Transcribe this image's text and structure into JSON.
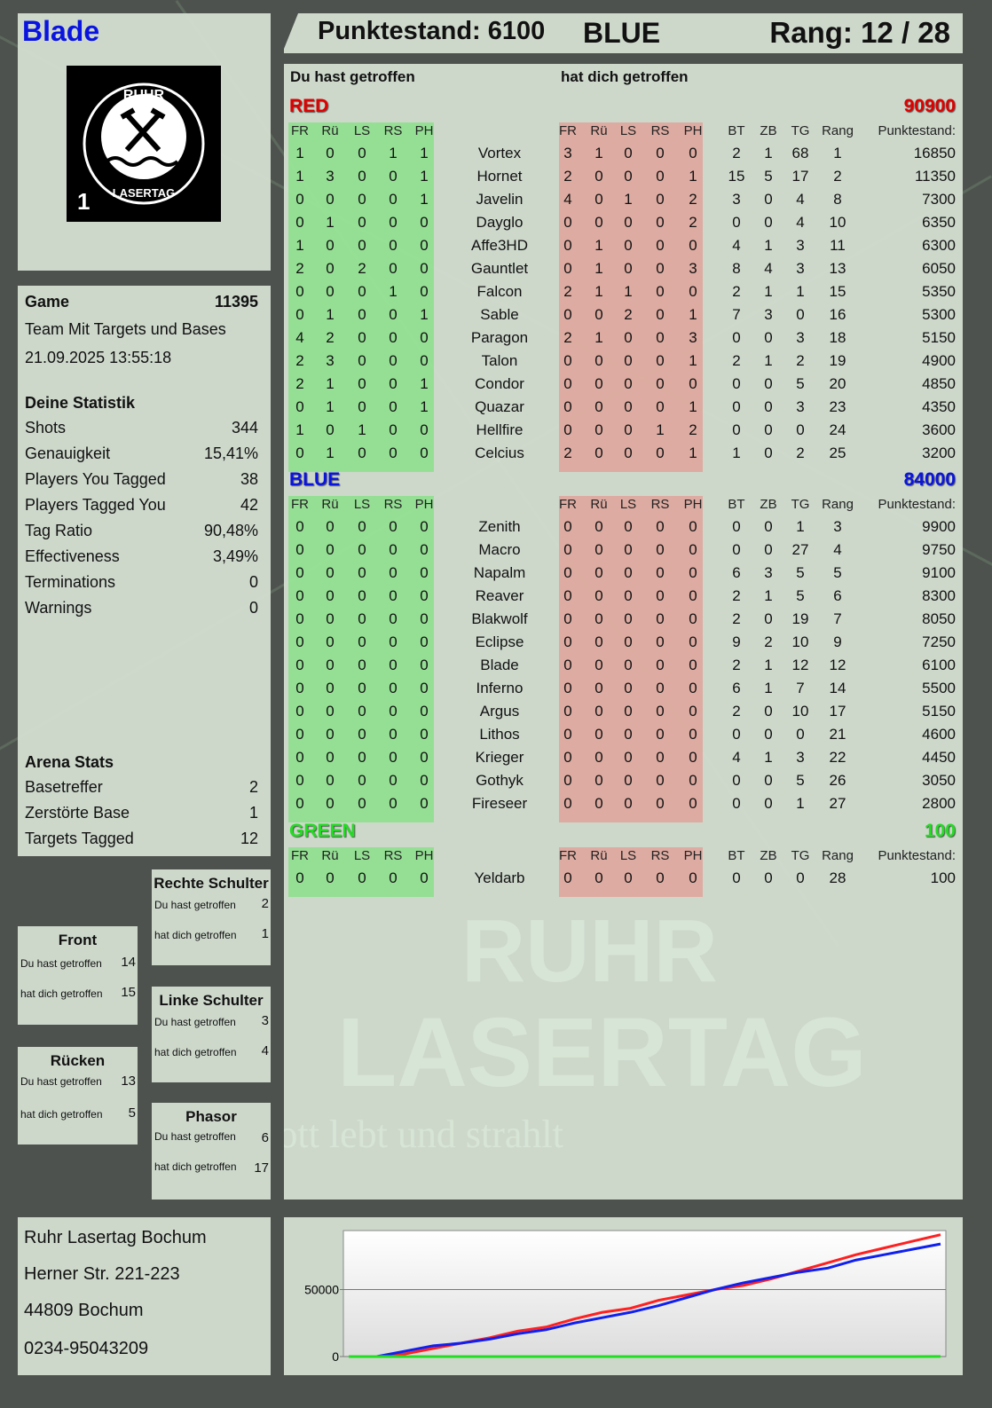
{
  "player": {
    "name": "Blade",
    "logo_text": "RUHR LASERTAG 1"
  },
  "header": {
    "score_label": "Punktestand: 6100",
    "team": "BLUE",
    "rank_label": "Rang: 12 / 28"
  },
  "game": {
    "label": "Game",
    "number": "11395",
    "mode": "Team Mit Targets und Bases",
    "datetime": "21.09.2025 13:55:18"
  },
  "stats": {
    "title": "Deine Statistik",
    "items": [
      {
        "label": "Shots",
        "value": "344"
      },
      {
        "label": "Genauigkeit",
        "value": "15,41%"
      },
      {
        "label": "Players You Tagged",
        "value": "38"
      },
      {
        "label": "Players Tagged You",
        "value": "42"
      },
      {
        "label": "Tag Ratio",
        "value": "90,48%"
      },
      {
        "label": "Effectiveness",
        "value": "3,49%"
      },
      {
        "label": "Terminations",
        "value": "0"
      },
      {
        "label": "Warnings",
        "value": "0"
      }
    ]
  },
  "arena": {
    "title": "Arena Stats",
    "items": [
      {
        "label": "Basetreffer",
        "value": "2"
      },
      {
        "label": "Zerstörte Base",
        "value": "1"
      },
      {
        "label": "Targets Tagged",
        "value": "12"
      }
    ]
  },
  "hitzones": {
    "you_hit": "Du hast getroffen",
    "hit_you": "hat dich getroffen",
    "zones": {
      "right_shoulder": {
        "title": "Rechte Schulter",
        "you_hit": "2",
        "hit_you": "1"
      },
      "front": {
        "title": "Front",
        "you_hit": "14",
        "hit_you": "15"
      },
      "left_shoulder": {
        "title": "Linke Schulter",
        "you_hit": "3",
        "hit_you": "4"
      },
      "back": {
        "title": "Rücken",
        "you_hit": "13",
        "hit_you": "5"
      },
      "phasor": {
        "title": "Phasor",
        "you_hit": "6",
        "hit_you": "17"
      }
    }
  },
  "address": {
    "lines": [
      "Ruhr Lasertag Bochum",
      "Herner Str. 221-223",
      "44809 Bochum",
      "0234-95043209"
    ]
  },
  "table": {
    "you_hit_title": "Du hast getroffen",
    "hit_you_title": "hat dich getroffen",
    "columns": [
      "FR",
      "Rü",
      "LS",
      "RS",
      "PH",
      "",
      "FR",
      "Rü",
      "LS",
      "RS",
      "PH",
      "BT",
      "ZB",
      "TG",
      "Rang",
      "Punktestand:"
    ],
    "teams": [
      {
        "name": "RED",
        "score": "90900",
        "color": "#e00000",
        "rows": [
          [
            "1",
            "0",
            "0",
            "1",
            "1",
            "Vortex",
            "3",
            "1",
            "0",
            "0",
            "0",
            "2",
            "1",
            "68",
            "1",
            "16850"
          ],
          [
            "1",
            "3",
            "0",
            "0",
            "1",
            "Hornet",
            "2",
            "0",
            "0",
            "0",
            "1",
            "15",
            "5",
            "17",
            "2",
            "11350"
          ],
          [
            "0",
            "0",
            "0",
            "0",
            "1",
            "Javelin",
            "4",
            "0",
            "1",
            "0",
            "2",
            "3",
            "0",
            "4",
            "8",
            "7300"
          ],
          [
            "0",
            "1",
            "0",
            "0",
            "0",
            "Dayglo",
            "0",
            "0",
            "0",
            "0",
            "2",
            "0",
            "0",
            "4",
            "10",
            "6350"
          ],
          [
            "1",
            "0",
            "0",
            "0",
            "0",
            "Affe3HD",
            "0",
            "1",
            "0",
            "0",
            "0",
            "4",
            "1",
            "3",
            "11",
            "6300"
          ],
          [
            "2",
            "0",
            "2",
            "0",
            "0",
            "Gauntlet",
            "0",
            "1",
            "0",
            "0",
            "3",
            "8",
            "4",
            "3",
            "13",
            "6050"
          ],
          [
            "0",
            "0",
            "0",
            "1",
            "0",
            "Falcon",
            "2",
            "1",
            "1",
            "0",
            "0",
            "2",
            "1",
            "1",
            "15",
            "5350"
          ],
          [
            "0",
            "1",
            "0",
            "0",
            "1",
            "Sable",
            "0",
            "0",
            "2",
            "0",
            "1",
            "7",
            "3",
            "0",
            "16",
            "5300"
          ],
          [
            "4",
            "2",
            "0",
            "0",
            "0",
            "Paragon",
            "2",
            "1",
            "0",
            "0",
            "3",
            "0",
            "0",
            "3",
            "18",
            "5150"
          ],
          [
            "2",
            "3",
            "0",
            "0",
            "0",
            "Talon",
            "0",
            "0",
            "0",
            "0",
            "1",
            "2",
            "1",
            "2",
            "19",
            "4900"
          ],
          [
            "2",
            "1",
            "0",
            "0",
            "1",
            "Condor",
            "0",
            "0",
            "0",
            "0",
            "0",
            "0",
            "0",
            "5",
            "20",
            "4850"
          ],
          [
            "0",
            "1",
            "0",
            "0",
            "1",
            "Quazar",
            "0",
            "0",
            "0",
            "0",
            "1",
            "0",
            "0",
            "3",
            "23",
            "4350"
          ],
          [
            "1",
            "0",
            "1",
            "0",
            "0",
            "Hellfire",
            "0",
            "0",
            "0",
            "1",
            "2",
            "0",
            "0",
            "0",
            "24",
            "3600"
          ],
          [
            "0",
            "1",
            "0",
            "0",
            "0",
            "Celcius",
            "2",
            "0",
            "0",
            "0",
            "1",
            "1",
            "0",
            "2",
            "25",
            "3200"
          ]
        ]
      },
      {
        "name": "BLUE",
        "score": "84000",
        "color": "#0a14e0",
        "rows": [
          [
            "0",
            "0",
            "0",
            "0",
            "0",
            "Zenith",
            "0",
            "0",
            "0",
            "0",
            "0",
            "0",
            "0",
            "1",
            "3",
            "9900"
          ],
          [
            "0",
            "0",
            "0",
            "0",
            "0",
            "Macro",
            "0",
            "0",
            "0",
            "0",
            "0",
            "0",
            "0",
            "27",
            "4",
            "9750"
          ],
          [
            "0",
            "0",
            "0",
            "0",
            "0",
            "Napalm",
            "0",
            "0",
            "0",
            "0",
            "0",
            "6",
            "3",
            "5",
            "5",
            "9100"
          ],
          [
            "0",
            "0",
            "0",
            "0",
            "0",
            "Reaver",
            "0",
            "0",
            "0",
            "0",
            "0",
            "2",
            "1",
            "5",
            "6",
            "8300"
          ],
          [
            "0",
            "0",
            "0",
            "0",
            "0",
            "Blakwolf",
            "0",
            "0",
            "0",
            "0",
            "0",
            "2",
            "0",
            "19",
            "7",
            "8050"
          ],
          [
            "0",
            "0",
            "0",
            "0",
            "0",
            "Eclipse",
            "0",
            "0",
            "0",
            "0",
            "0",
            "9",
            "2",
            "10",
            "9",
            "7250"
          ],
          [
            "0",
            "0",
            "0",
            "0",
            "0",
            "Blade",
            "0",
            "0",
            "0",
            "0",
            "0",
            "2",
            "1",
            "12",
            "12",
            "6100"
          ],
          [
            "0",
            "0",
            "0",
            "0",
            "0",
            "Inferno",
            "0",
            "0",
            "0",
            "0",
            "0",
            "6",
            "1",
            "7",
            "14",
            "5500"
          ],
          [
            "0",
            "0",
            "0",
            "0",
            "0",
            "Argus",
            "0",
            "0",
            "0",
            "0",
            "0",
            "2",
            "0",
            "10",
            "17",
            "5150"
          ],
          [
            "0",
            "0",
            "0",
            "0",
            "0",
            "Lithos",
            "0",
            "0",
            "0",
            "0",
            "0",
            "0",
            "0",
            "0",
            "21",
            "4600"
          ],
          [
            "0",
            "0",
            "0",
            "0",
            "0",
            "Krieger",
            "0",
            "0",
            "0",
            "0",
            "0",
            "4",
            "1",
            "3",
            "22",
            "4450"
          ],
          [
            "0",
            "0",
            "0",
            "0",
            "0",
            "Gothyk",
            "0",
            "0",
            "0",
            "0",
            "0",
            "0",
            "0",
            "5",
            "26",
            "3050"
          ],
          [
            "0",
            "0",
            "0",
            "0",
            "0",
            "Fireseer",
            "0",
            "0",
            "0",
            "0",
            "0",
            "0",
            "0",
            "1",
            "27",
            "2800"
          ]
        ]
      },
      {
        "name": "GREEN",
        "score": "100",
        "color": "#22dd22",
        "rows": [
          [
            "0",
            "0",
            "0",
            "0",
            "0",
            "Yeldarb",
            "0",
            "0",
            "0",
            "0",
            "0",
            "0",
            "0",
            "0",
            "28",
            "100"
          ]
        ]
      }
    ]
  },
  "watermark": {
    "line1": "RUHR",
    "line2": "LASERTAG",
    "slogan": "Der Pott lebt und strahlt"
  },
  "chart_data": {
    "type": "line",
    "ylim": [
      0,
      94000
    ],
    "yticks": [
      "0",
      "50000"
    ],
    "grid": "horizontal at 50000",
    "series": [
      {
        "color": "#ff2020",
        "values": [
          0,
          0,
          2000,
          6000,
          10000,
          14000,
          19000,
          22000,
          28000,
          33000,
          36000,
          42000,
          46000,
          50000,
          53000,
          58000,
          64000,
          70000,
          76000,
          81000,
          86000,
          90900
        ]
      },
      {
        "color": "#1020ee",
        "values": [
          0,
          0,
          4000,
          8000,
          10000,
          13000,
          17000,
          20000,
          25000,
          29000,
          33000,
          38000,
          44000,
          50000,
          55000,
          59000,
          63000,
          66000,
          72000,
          76000,
          80000,
          84000
        ]
      },
      {
        "color": "#22dd22",
        "values": [
          0,
          0,
          0,
          0,
          0,
          0,
          0,
          0,
          0,
          0,
          0,
          0,
          0,
          0,
          0,
          0,
          0,
          0,
          0,
          0,
          0,
          100
        ]
      }
    ]
  }
}
